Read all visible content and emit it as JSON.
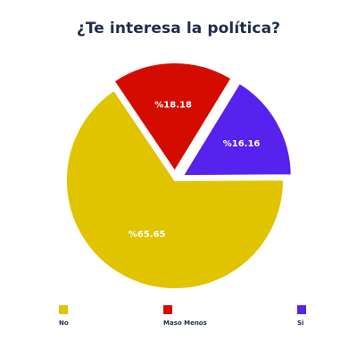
{
  "colors": {
    "no": "#e0c400",
    "maso_menos": "#d40c00",
    "si": "#5522ee"
  },
  "chart_data": {
    "type": "pie",
    "title": "¿Te interesa la política?",
    "slices": [
      {
        "label": "No",
        "value": 65.65,
        "display": "%65.65",
        "color": "#e0c400",
        "exploded": false
      },
      {
        "label": "Maso Menos",
        "value": 18.18,
        "display": "%18.18",
        "color": "#d40c00",
        "exploded": true
      },
      {
        "label": "Si",
        "value": 16.16,
        "display": "%16.16",
        "color": "#5522ee",
        "exploded": true
      }
    ],
    "legend_placement": "bottom"
  },
  "legend": {
    "items": [
      {
        "label": "No",
        "color": "#e0c400"
      },
      {
        "label": "Maso Menos",
        "color": "#d40c00"
      },
      {
        "label": "Si",
        "color": "#5522ee"
      }
    ]
  }
}
